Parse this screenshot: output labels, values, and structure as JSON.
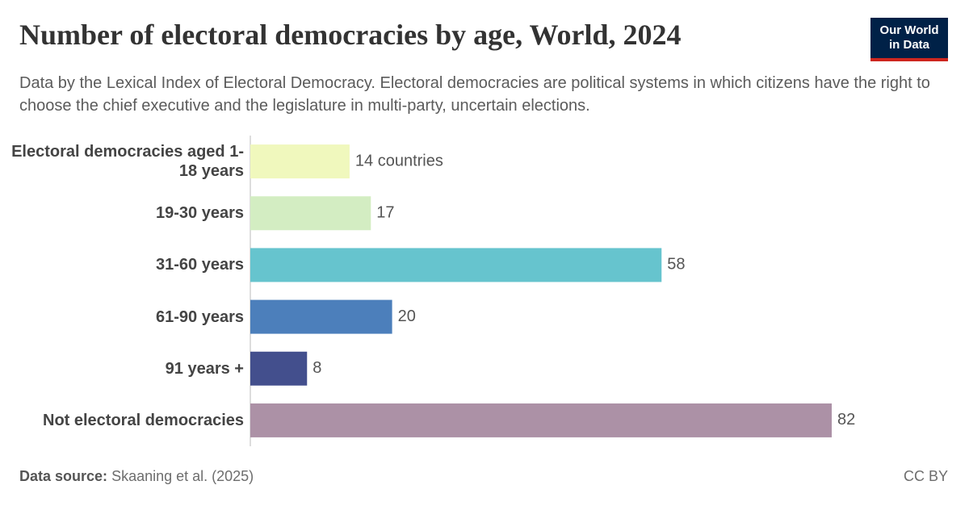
{
  "chart_data": {
    "type": "hbar",
    "title": "Number of electoral democracies by age, World, 2024",
    "subtitle": "Data by the Lexical Index of Electoral Democracy. Electoral democracies are political systems in which citizens have the right to choose the chief executive and the legislature in multi-party, uncertain elections.",
    "logo": "Our World in Data",
    "categories": [
      "Electoral democracies aged 1-18 years",
      "19-30 years",
      "31-60 years",
      "61-90 years",
      "91 years +",
      "Not electoral democracies"
    ],
    "values": [
      14,
      17,
      58,
      20,
      8,
      82
    ],
    "value_labels": [
      "14 countries",
      "17",
      "58",
      "20",
      "8",
      "82"
    ],
    "colors": [
      "#f0f8bd",
      "#d3edc2",
      "#66c4ce",
      "#4c7fbb",
      "#434f8d",
      "#ac91a6"
    ],
    "source_label": "Data source:",
    "source": "Skaaning et al. (2025)",
    "license": "CC BY"
  }
}
